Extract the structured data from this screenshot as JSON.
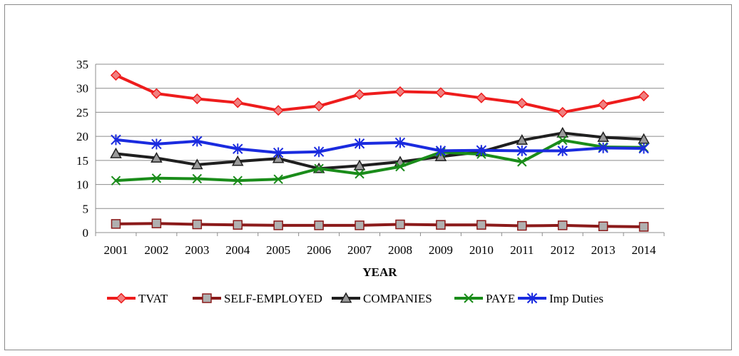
{
  "chart_data": {
    "type": "line",
    "title": "",
    "xlabel": "YEAR",
    "ylabel": "",
    "ylim": [
      0,
      35
    ],
    "yticks": [
      0,
      5,
      10,
      15,
      20,
      25,
      30,
      35
    ],
    "grid": "horizontal",
    "legend_position": "bottom",
    "categories": [
      "2001",
      "2002",
      "2003",
      "2004",
      "2005",
      "2006",
      "2007",
      "2008",
      "2009",
      "2010",
      "2011",
      "2012",
      "2013",
      "2014"
    ],
    "series": [
      {
        "name": "TVAT",
        "color": "#ee1c1c",
        "marker": "diamond",
        "marker_fill": "#f08080",
        "values": [
          32.7,
          28.9,
          27.8,
          27.0,
          25.4,
          26.3,
          28.7,
          29.3,
          29.1,
          28.0,
          26.9,
          25.0,
          26.6,
          28.4
        ]
      },
      {
        "name": "SELF-EMPLOYED",
        "color": "#8b1a1a",
        "marker": "square",
        "marker_fill": "#b0b0b0",
        "values": [
          1.8,
          1.9,
          1.7,
          1.6,
          1.5,
          1.5,
          1.5,
          1.7,
          1.6,
          1.6,
          1.4,
          1.5,
          1.3,
          1.2
        ]
      },
      {
        "name": "COMPANIES",
        "color": "#1f1f1f",
        "marker": "triangle",
        "marker_fill": "#9a9a9a",
        "values": [
          16.4,
          15.5,
          14.1,
          14.8,
          15.4,
          13.3,
          13.9,
          14.7,
          15.8,
          16.8,
          19.2,
          20.7,
          19.8,
          19.4
        ]
      },
      {
        "name": "PAYE",
        "color": "#1a8c1a",
        "marker": "x",
        "marker_fill": "#1a8c1a",
        "values": [
          10.8,
          11.3,
          11.2,
          10.8,
          11.1,
          13.3,
          12.2,
          13.7,
          16.7,
          16.3,
          14.7,
          19.2,
          17.8,
          17.7
        ]
      },
      {
        "name": "Imp Duties",
        "color": "#1a2bdf",
        "marker": "asterisk",
        "marker_fill": "#1a2bdf",
        "values": [
          19.3,
          18.4,
          19.0,
          17.4,
          16.6,
          16.8,
          18.5,
          18.7,
          17.0,
          17.1,
          17.0,
          17.0,
          17.6,
          17.5
        ]
      }
    ]
  }
}
